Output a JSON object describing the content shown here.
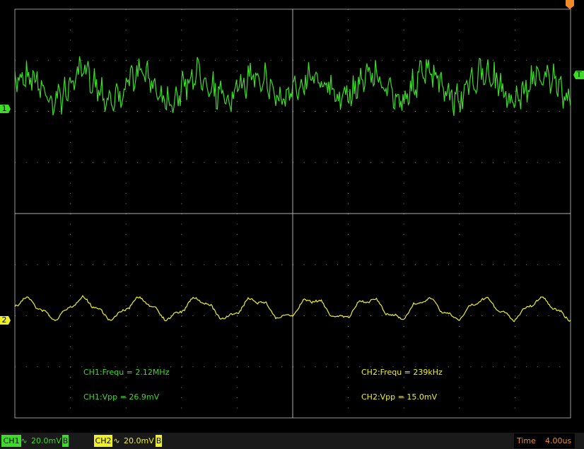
{
  "screen": {
    "markers": {
      "ch1": "1",
      "ch2": "2",
      "trigger": "T"
    },
    "measurements": [
      {
        "text": "CH1:Frequ = 2.12MHz",
        "channel": "ch1"
      },
      {
        "text": "CH1:Vpp = 26.9mV",
        "channel": "ch1"
      },
      {
        "text": "CH2:Frequ = 239kHz",
        "channel": "ch2"
      },
      {
        "text": "CH2:Vpp = 15.0mV",
        "channel": "ch2"
      }
    ]
  },
  "status_bar": {
    "ch1": {
      "label": "CH1",
      "coupling": "∿",
      "scale": "20.0mV",
      "bw": "B"
    },
    "ch2": {
      "label": "CH2",
      "coupling": "∿",
      "scale": "20.0mV",
      "bw": "B"
    },
    "time": {
      "label": "Time",
      "value": "4.00us"
    }
  }
}
